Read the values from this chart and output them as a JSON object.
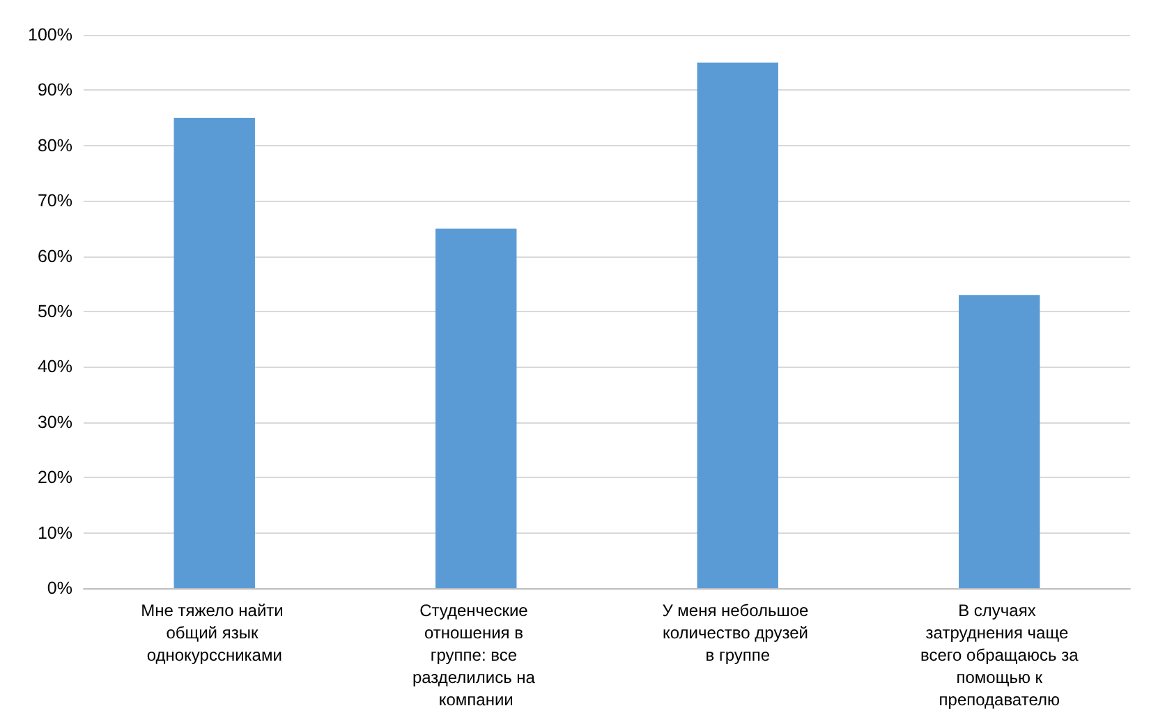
{
  "chart_data": {
    "type": "bar",
    "categories": [
      "Мне тяжело найти общий язык однокурссниками",
      "Студенческие отношения в группе: все разделились на компании",
      "У меня небольшое количество друзей в группе",
      "В случаях затруднения чаще всего обращаюсь за помощью к преподавателю"
    ],
    "values": [
      85,
      65,
      95,
      53
    ],
    "color": "#5b9bd5",
    "ylim": [
      0,
      100
    ],
    "yticks": [
      {
        "value": 0,
        "label": "0%"
      },
      {
        "value": 10,
        "label": "10%"
      },
      {
        "value": 20,
        "label": "20%"
      },
      {
        "value": 30,
        "label": "30%"
      },
      {
        "value": 40,
        "label": "40%"
      },
      {
        "value": 50,
        "label": "50%"
      },
      {
        "value": 60,
        "label": "60%"
      },
      {
        "value": 70,
        "label": "70%"
      },
      {
        "value": 80,
        "label": "80%"
      },
      {
        "value": 90,
        "label": "90%"
      },
      {
        "value": 100,
        "label": "100%"
      }
    ],
    "grid": "y"
  }
}
